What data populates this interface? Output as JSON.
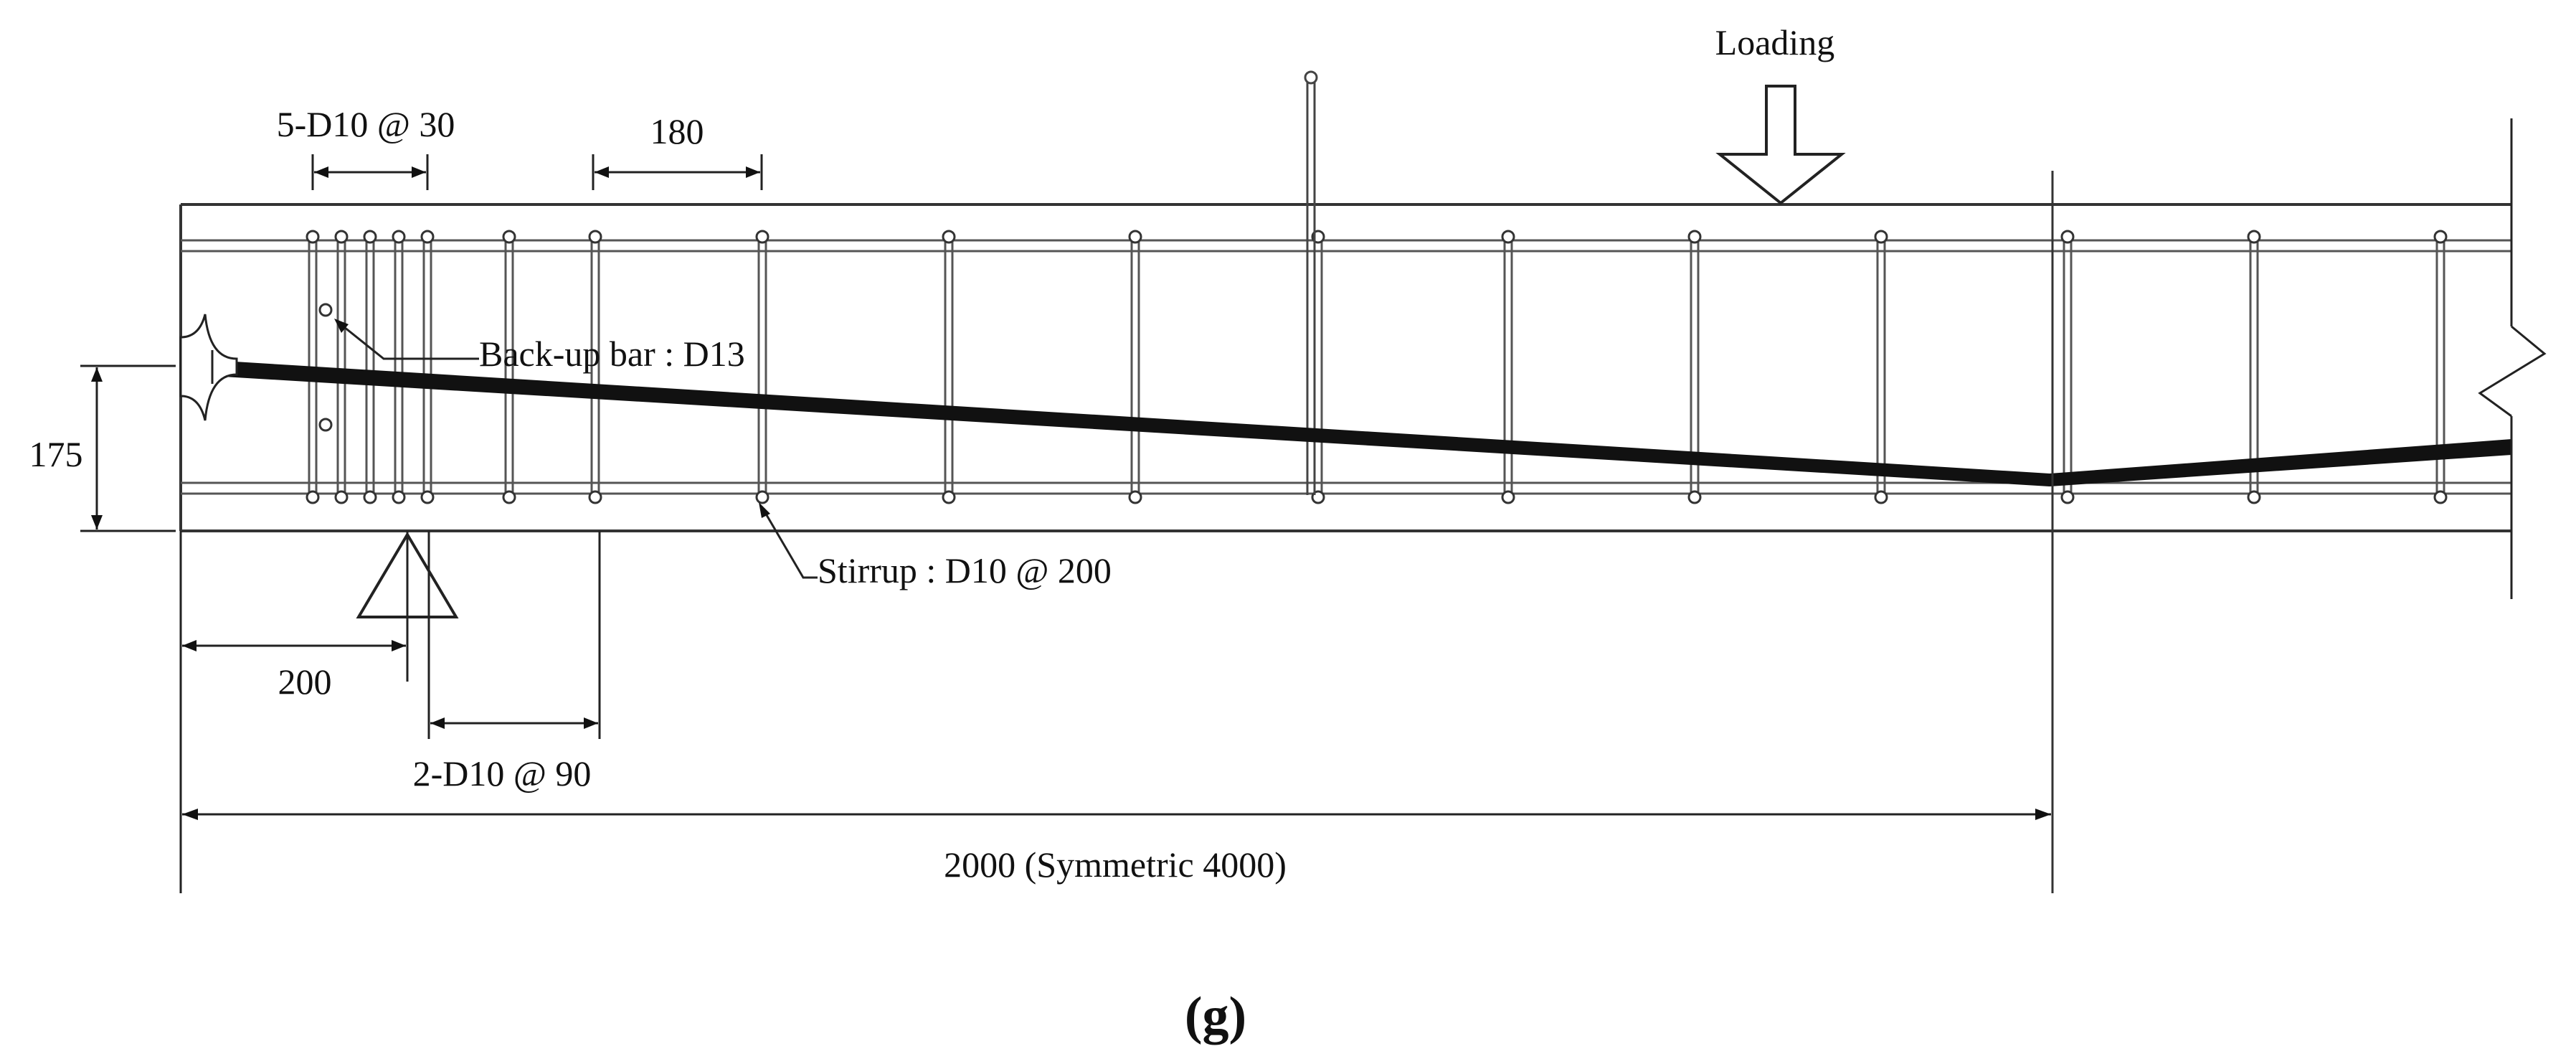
{
  "labels": {
    "loading": "Loading",
    "dim_top_stirrups": "5-D10 @ 30",
    "dim_180": "180",
    "backup_bar": "Back-up bar : D13",
    "dim_175": "175",
    "stirrup": "Stirrup : D10 @ 200",
    "dim_200": "200",
    "dim_2d10": "2-D10 @ 90",
    "dim_total": "2000 (Symmetric  4000)",
    "caption": "(g)"
  },
  "colors": {
    "ink": "#111111",
    "line": "#555555",
    "background": "#ffffff"
  },
  "icons": {
    "load_arrow": "down-arrow-icon",
    "support": "triangle-support-icon",
    "anchor": "tendon-anchor-icon",
    "break": "break-line-icon"
  }
}
